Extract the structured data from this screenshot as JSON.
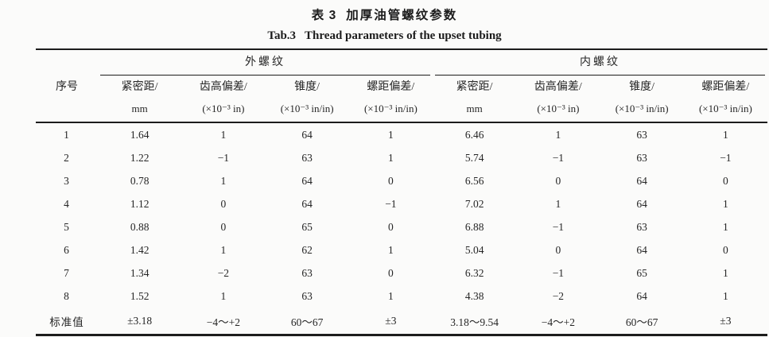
{
  "title": {
    "cn_label": "表 3",
    "cn_text": "加厚油管螺纹参数",
    "en_label": "Tab.3",
    "en_text": "Thread parameters of the upset tubing"
  },
  "table": {
    "row_header": "序号",
    "groups": [
      {
        "label": "外螺纹"
      },
      {
        "label": "内螺纹"
      }
    ],
    "columns": [
      {
        "name": "紧密距/",
        "unit": "mm"
      },
      {
        "name": "齿高偏差/",
        "unit": "(×10⁻³ in)"
      },
      {
        "name": "锥度/",
        "unit": "(×10⁻³ in/in)"
      },
      {
        "name": "螺距偏差/",
        "unit": "(×10⁻³ in/in)"
      }
    ],
    "rows": [
      {
        "id": "1",
        "ext": [
          "1.64",
          "1",
          "64",
          "1"
        ],
        "int": [
          "6.46",
          "1",
          "63",
          "1"
        ]
      },
      {
        "id": "2",
        "ext": [
          "1.22",
          "−1",
          "63",
          "1"
        ],
        "int": [
          "5.74",
          "−1",
          "63",
          "−1"
        ]
      },
      {
        "id": "3",
        "ext": [
          "0.78",
          "1",
          "64",
          "0"
        ],
        "int": [
          "6.56",
          "0",
          "64",
          "0"
        ]
      },
      {
        "id": "4",
        "ext": [
          "1.12",
          "0",
          "64",
          "−1"
        ],
        "int": [
          "7.02",
          "1",
          "64",
          "1"
        ]
      },
      {
        "id": "5",
        "ext": [
          "0.88",
          "0",
          "65",
          "0"
        ],
        "int": [
          "6.88",
          "−1",
          "63",
          "1"
        ]
      },
      {
        "id": "6",
        "ext": [
          "1.42",
          "1",
          "62",
          "1"
        ],
        "int": [
          "5.04",
          "0",
          "64",
          "0"
        ]
      },
      {
        "id": "7",
        "ext": [
          "1.34",
          "−2",
          "63",
          "0"
        ],
        "int": [
          "6.32",
          "−1",
          "65",
          "1"
        ]
      },
      {
        "id": "8",
        "ext": [
          "1.52",
          "1",
          "63",
          "1"
        ],
        "int": [
          "4.38",
          "−2",
          "64",
          "1"
        ]
      },
      {
        "id": "标准值",
        "ext": [
          "±3.18",
          "−4～+2",
          "60～67",
          "±3"
        ],
        "int": [
          "3.18～9.54",
          "−4～+2",
          "60～67",
          "±3"
        ]
      }
    ]
  }
}
